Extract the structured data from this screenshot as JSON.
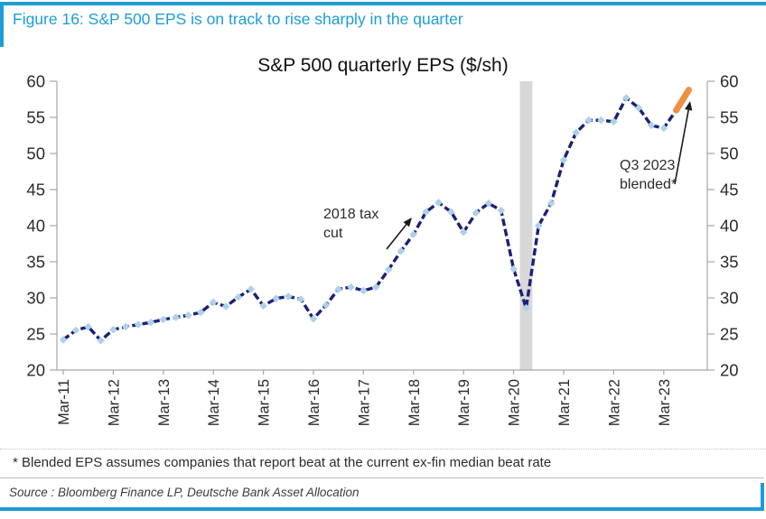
{
  "figure": {
    "title": "Figure 16: S&P 500 EPS is on track to rise sharply in the quarter",
    "footnote": "* Blended EPS assumes companies that report beat at the current ex-fin median beat rate",
    "source": "Source : Bloomberg Finance LP, Deutsche Bank Asset Allocation"
  },
  "annotations": {
    "tax_cut": {
      "line1": "2018 tax",
      "line2": "cut"
    },
    "q3_blended": {
      "line1": "Q3 2023",
      "line2": "blended*"
    }
  },
  "colors": {
    "accent_blue": "#1e9cd8",
    "line_navy": "#1b1f78",
    "marker_blue": "#aed1ea",
    "estimate_orange": "#ee9143",
    "recession_gray": "#d8d8d8",
    "axis_gray": "#a6a6a6",
    "axis_text": "#2b2b2b"
  },
  "chart_data": {
    "type": "line",
    "title": "S&P 500 quarterly EPS ($/sh)",
    "xlabel": "",
    "ylabel": "",
    "ylim": [
      20,
      60
    ],
    "ytick_step": 5,
    "grid": false,
    "legend_position": "none",
    "y_axis_sides": [
      "left",
      "right"
    ],
    "x_tick_every": 4,
    "x_label_rotation": -90,
    "categories": [
      "Mar-11",
      "Jun-11",
      "Sep-11",
      "Dec-11",
      "Mar-12",
      "Jun-12",
      "Sep-12",
      "Dec-12",
      "Mar-13",
      "Jun-13",
      "Sep-13",
      "Dec-13",
      "Mar-14",
      "Jun-14",
      "Sep-14",
      "Dec-14",
      "Mar-15",
      "Jun-15",
      "Sep-15",
      "Dec-15",
      "Mar-16",
      "Jun-16",
      "Sep-16",
      "Dec-16",
      "Mar-17",
      "Jun-17",
      "Sep-17",
      "Dec-17",
      "Mar-18",
      "Jun-18",
      "Sep-18",
      "Dec-18",
      "Mar-19",
      "Jun-19",
      "Sep-19",
      "Dec-19",
      "Mar-20",
      "Jun-20",
      "Sep-20",
      "Dec-20",
      "Mar-21",
      "Jun-21",
      "Sep-21",
      "Dec-21",
      "Mar-22",
      "Jun-22",
      "Sep-22",
      "Dec-22",
      "Mar-23",
      "Jun-23",
      "Sep-23"
    ],
    "series": [
      {
        "name": "S&P 500 quarterly EPS",
        "style": "dashed",
        "color": "#1b1f78",
        "marker": "diamond",
        "values": [
          24.2,
          25.5,
          26.0,
          24.1,
          25.6,
          26.0,
          26.3,
          26.6,
          27.0,
          27.3,
          27.6,
          28.0,
          29.4,
          28.8,
          30.1,
          31.2,
          28.9,
          29.9,
          30.2,
          29.8,
          27.1,
          29.0,
          31.2,
          31.5,
          31.0,
          31.5,
          33.9,
          36.5,
          38.8,
          41.9,
          43.2,
          41.9,
          39.1,
          41.8,
          43.1,
          42.1,
          34.0,
          28.6,
          40.0,
          43.1,
          49.1,
          52.9,
          54.6,
          54.6,
          54.4,
          57.7,
          56.3,
          53.9,
          53.5,
          56.0,
          null
        ]
      },
      {
        "name": "Q3 2023 blended estimate",
        "style": "solid-thick",
        "color": "#ee9143",
        "marker": "none",
        "values": [
          null,
          null,
          null,
          null,
          null,
          null,
          null,
          null,
          null,
          null,
          null,
          null,
          null,
          null,
          null,
          null,
          null,
          null,
          null,
          null,
          null,
          null,
          null,
          null,
          null,
          null,
          null,
          null,
          null,
          null,
          null,
          null,
          null,
          null,
          null,
          null,
          null,
          null,
          null,
          null,
          null,
          null,
          null,
          null,
          null,
          null,
          null,
          null,
          null,
          56.0,
          58.8
        ]
      }
    ],
    "recession_shading": {
      "from": "Mar-20",
      "to": "Jun-20"
    }
  }
}
